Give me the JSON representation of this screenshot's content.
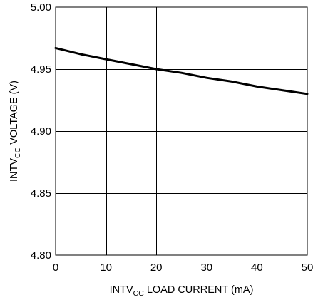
{
  "chart_data": {
    "type": "line",
    "title": "",
    "xlabel": {
      "prefix": "INTV",
      "subscript": "CC",
      "suffix": " LOAD CURRENT (mA)"
    },
    "ylabel": {
      "prefix": "INTV",
      "subscript": "CC",
      "suffix": " VOLTAGE (V)"
    },
    "xlim": [
      0,
      50
    ],
    "ylim": [
      4.8,
      5.0
    ],
    "x_ticks": [
      0,
      10,
      20,
      30,
      40,
      50
    ],
    "x_tick_labels": [
      "0",
      "10",
      "20",
      "30",
      "40",
      "50"
    ],
    "y_ticks": [
      4.8,
      4.85,
      4.9,
      4.95,
      5.0
    ],
    "y_tick_labels": [
      "4.80",
      "4.85",
      "4.90",
      "4.95",
      "5.00"
    ],
    "grid": true,
    "series": [
      {
        "x": [
          0,
          5,
          10,
          15,
          20,
          25,
          30,
          35,
          40,
          45,
          50
        ],
        "y": [
          4.967,
          4.962,
          4.958,
          4.954,
          4.95,
          4.947,
          4.943,
          4.94,
          4.936,
          4.933,
          4.93
        ],
        "color": "#000000"
      }
    ]
  }
}
